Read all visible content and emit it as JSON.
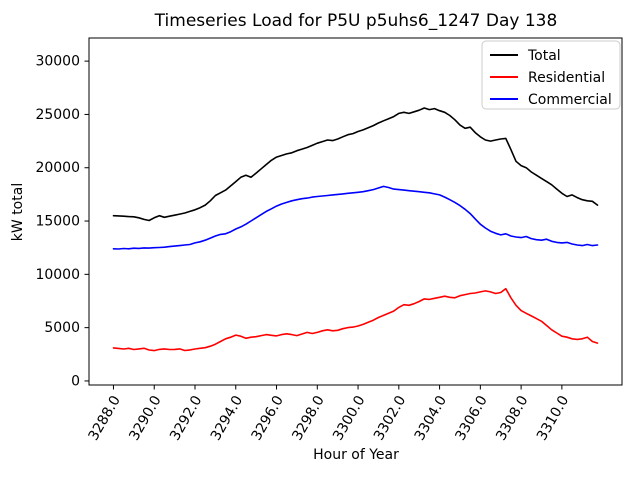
{
  "chart_data": {
    "type": "line",
    "title": "Timeseries Load for P5U p5uhs6_1247  Day 138",
    "xlabel": "Hour of Year",
    "ylabel": "kW total",
    "xlim": [
      3286.8,
      3312.95
    ],
    "ylim": [
      -380,
      32170
    ],
    "grid": false,
    "legend_position": "upper right",
    "xtick_labels": [
      "3288.0",
      "3290.0",
      "3292.0",
      "3294.0",
      "3296.0",
      "3298.0",
      "3300.0",
      "3302.0",
      "3304.0",
      "3306.0",
      "3308.0",
      "3310.0"
    ],
    "xtick_values": [
      3288,
      3290,
      3292,
      3294,
      3296,
      3298,
      3300,
      3302,
      3304,
      3306,
      3308,
      3310
    ],
    "ytick_labels": [
      "0",
      "5000",
      "10000",
      "15000",
      "20000",
      "25000",
      "30000"
    ],
    "ytick_values": [
      0,
      5000,
      10000,
      15000,
      20000,
      25000,
      30000
    ],
    "x": [
      3288.0,
      3288.25,
      3288.5,
      3288.75,
      3289.0,
      3289.25,
      3289.5,
      3289.75,
      3290.0,
      3290.25,
      3290.5,
      3290.75,
      3291.0,
      3291.25,
      3291.5,
      3291.75,
      3292.0,
      3292.25,
      3292.5,
      3292.75,
      3293.0,
      3293.25,
      3293.5,
      3293.75,
      3294.0,
      3294.25,
      3294.5,
      3294.75,
      3295.0,
      3295.25,
      3295.5,
      3295.75,
      3296.0,
      3296.25,
      3296.5,
      3296.75,
      3297.0,
      3297.25,
      3297.5,
      3297.75,
      3298.0,
      3298.25,
      3298.5,
      3298.75,
      3299.0,
      3299.25,
      3299.5,
      3299.75,
      3300.0,
      3300.25,
      3300.5,
      3300.75,
      3301.0,
      3301.25,
      3301.5,
      3301.75,
      3302.0,
      3302.25,
      3302.5,
      3302.75,
      3303.0,
      3303.25,
      3303.5,
      3303.75,
      3304.0,
      3304.25,
      3304.5,
      3304.75,
      3305.0,
      3305.25,
      3305.5,
      3305.75,
      3306.0,
      3306.25,
      3306.5,
      3306.75,
      3307.0,
      3307.25,
      3307.5,
      3307.75,
      3308.0,
      3308.25,
      3308.5,
      3308.75,
      3309.0,
      3309.25,
      3309.5,
      3309.75,
      3310.0,
      3310.25,
      3310.5,
      3310.75,
      3311.0,
      3311.25,
      3311.5,
      3311.75
    ],
    "series": [
      {
        "name": "Total",
        "color": "#000000",
        "values": [
          15500,
          15480,
          15450,
          15420,
          15400,
          15300,
          15150,
          15050,
          15300,
          15500,
          15350,
          15450,
          15550,
          15650,
          15750,
          15900,
          16050,
          16250,
          16500,
          16900,
          17400,
          17650,
          17900,
          18300,
          18700,
          19100,
          19300,
          19100,
          19500,
          19900,
          20300,
          20700,
          21000,
          21150,
          21300,
          21400,
          21600,
          21750,
          21900,
          22100,
          22300,
          22450,
          22600,
          22550,
          22700,
          22900,
          23100,
          23200,
          23400,
          23550,
          23750,
          23950,
          24200,
          24400,
          24600,
          24800,
          25100,
          25200,
          25100,
          25250,
          25400,
          25600,
          25450,
          25550,
          25350,
          25200,
          24900,
          24500,
          24000,
          23700,
          23800,
          23300,
          22900,
          22600,
          22500,
          22600,
          22700,
          22750,
          21700,
          20600,
          20200,
          20000,
          19600,
          19300,
          19000,
          18700,
          18400,
          18000,
          17600,
          17300,
          17450,
          17200,
          17000,
          16900,
          16850,
          16500
        ]
      },
      {
        "name": "Residential",
        "color": "#ff0000",
        "values": [
          3100,
          3050,
          3000,
          3060,
          2950,
          3010,
          3060,
          2900,
          2850,
          2960,
          3010,
          2950,
          2960,
          3010,
          2860,
          2910,
          3000,
          3060,
          3120,
          3260,
          3450,
          3700,
          3950,
          4100,
          4300,
          4200,
          4000,
          4100,
          4150,
          4250,
          4350,
          4280,
          4230,
          4350,
          4420,
          4350,
          4250,
          4400,
          4550,
          4450,
          4550,
          4700,
          4800,
          4700,
          4750,
          4900,
          5000,
          5050,
          5150,
          5300,
          5500,
          5700,
          5950,
          6150,
          6350,
          6550,
          6900,
          7150,
          7100,
          7250,
          7450,
          7700,
          7650,
          7750,
          7850,
          7950,
          7850,
          7800,
          8000,
          8100,
          8200,
          8250,
          8350,
          8450,
          8350,
          8200,
          8300,
          8650,
          7800,
          7100,
          6600,
          6350,
          6100,
          5850,
          5600,
          5200,
          4800,
          4500,
          4200,
          4100,
          3950,
          3900,
          3950,
          4100,
          3700,
          3550
        ]
      },
      {
        "name": "Commercial",
        "color": "#0000ff",
        "values": [
          12400,
          12380,
          12420,
          12400,
          12450,
          12430,
          12480,
          12460,
          12500,
          12520,
          12550,
          12600,
          12650,
          12700,
          12750,
          12800,
          12950,
          13050,
          13200,
          13400,
          13600,
          13750,
          13800,
          14000,
          14250,
          14450,
          14700,
          15000,
          15300,
          15600,
          15900,
          16150,
          16400,
          16600,
          16750,
          16900,
          17000,
          17100,
          17150,
          17250,
          17300,
          17350,
          17400,
          17450,
          17500,
          17550,
          17600,
          17650,
          17700,
          17750,
          17850,
          17950,
          18100,
          18250,
          18150,
          18000,
          17950,
          17900,
          17850,
          17800,
          17750,
          17700,
          17650,
          17550,
          17450,
          17250,
          17000,
          16750,
          16450,
          16100,
          15700,
          15200,
          14700,
          14350,
          14050,
          13850,
          13700,
          13800,
          13600,
          13500,
          13450,
          13550,
          13350,
          13250,
          13200,
          13300,
          13100,
          13000,
          12950,
          13000,
          12850,
          12750,
          12700,
          12800,
          12700,
          12750
        ]
      }
    ]
  }
}
